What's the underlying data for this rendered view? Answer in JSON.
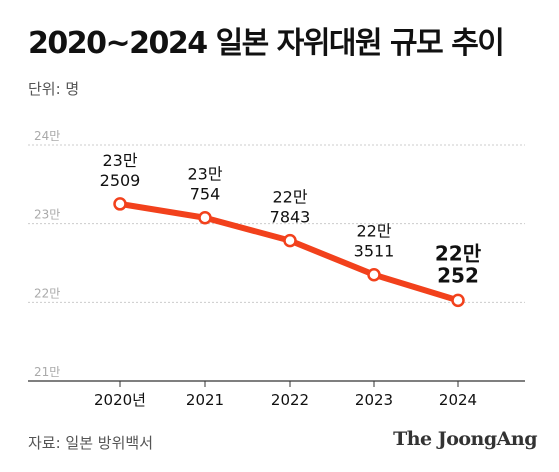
{
  "header": {
    "title": "2020~2024 일본 자위대원 규모 추이",
    "unit": "단위: 명"
  },
  "footer": {
    "source": "자료: 일본 방위백서",
    "logo": "The JoongAng"
  },
  "colors": {
    "line": "#f2411c",
    "grid": "#cccccc",
    "axis": "#333333"
  },
  "chart_data": {
    "type": "line",
    "title": "2020~2024 일본 자위대원 규모 추이",
    "ylabel": "단위: 명",
    "xlabel": "",
    "categories": [
      "2020년",
      "2021",
      "2022",
      "2023",
      "2024"
    ],
    "series": [
      {
        "values": [
          232509,
          230754,
          227843,
          223511,
          220252
        ]
      }
    ],
    "data_labels": [
      [
        "23만",
        "2509"
      ],
      [
        "23만",
        "754"
      ],
      [
        "22만",
        "7843"
      ],
      [
        "22만",
        "3511"
      ],
      [
        "22만",
        "252"
      ]
    ],
    "ylim": [
      210000,
      240000
    ],
    "yticks": [
      210000,
      220000,
      230000,
      240000
    ],
    "ytick_labels": [
      "21만",
      "22만",
      "23만",
      "24만"
    ],
    "grid": true,
    "legend": "none"
  }
}
